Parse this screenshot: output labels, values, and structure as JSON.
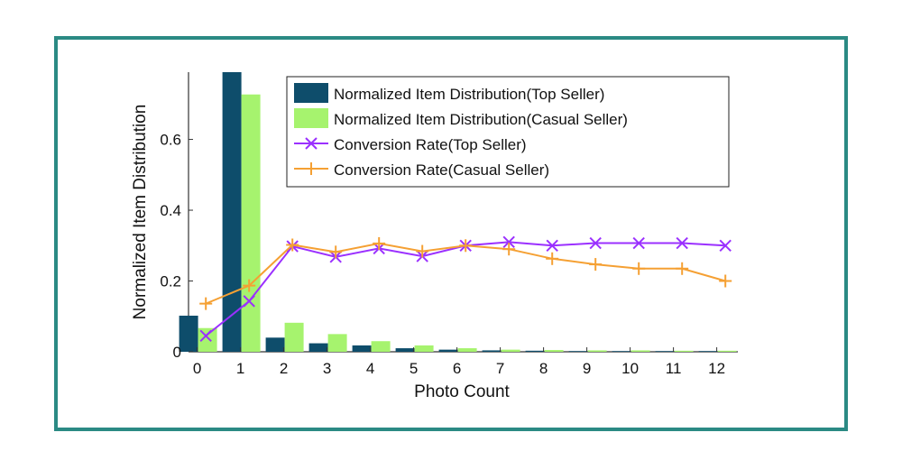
{
  "chart_data": {
    "type": "bar",
    "xlabel": "Photo Count",
    "ylabel": "Normalized Item Distribution",
    "categories": [
      "0",
      "1",
      "2",
      "3",
      "4",
      "5",
      "6",
      "7",
      "8",
      "9",
      "10",
      "11",
      "12"
    ],
    "xlim": [
      -0.2,
      12.6
    ],
    "ylim": [
      0,
      0.79
    ],
    "yticks": [
      0,
      0.2,
      0.4,
      0.6
    ],
    "ytick_labels": [
      "0",
      "0.2",
      "0.4",
      "0.6"
    ],
    "grid": false,
    "legend_position": "top-center",
    "series": [
      {
        "name": "Normalized Item Distribution(Top Seller)",
        "kind": "bar",
        "color": "#0e4d6b",
        "values": [
          0.102,
          0.79,
          0.04,
          0.024,
          0.018,
          0.01,
          0.006,
          0.004,
          0.003,
          0.002,
          0.002,
          0.002,
          0.002
        ]
      },
      {
        "name": "Normalized Item Distribution(Casual Seller)",
        "kind": "bar",
        "color": "#a6f36e",
        "values": [
          0.067,
          0.727,
          0.082,
          0.05,
          0.03,
          0.018,
          0.01,
          0.006,
          0.005,
          0.004,
          0.004,
          0.003,
          0.003
        ]
      },
      {
        "name": "Conversion Rate(Top Seller)",
        "kind": "line",
        "marker": "x",
        "color": "#9b30ff",
        "x": [
          0.2,
          1.2,
          2.2,
          3.2,
          4.2,
          5.2,
          6.2,
          7.2,
          8.2,
          9.2,
          10.2,
          11.2,
          12.2
        ],
        "values": [
          0.045,
          0.143,
          0.298,
          0.268,
          0.292,
          0.27,
          0.3,
          0.31,
          0.3,
          0.307,
          0.307,
          0.307,
          0.3
        ]
      },
      {
        "name": "Conversion Rate(Casual Seller)",
        "kind": "line",
        "marker": "+",
        "color": "#f5a033",
        "x": [
          0.2,
          1.2,
          2.2,
          3.2,
          4.2,
          5.2,
          6.2,
          7.2,
          8.2,
          9.2,
          10.2,
          11.2,
          12.2
        ],
        "values": [
          0.136,
          0.187,
          0.302,
          0.282,
          0.306,
          0.284,
          0.3,
          0.29,
          0.263,
          0.247,
          0.235,
          0.235,
          0.2
        ]
      }
    ]
  }
}
